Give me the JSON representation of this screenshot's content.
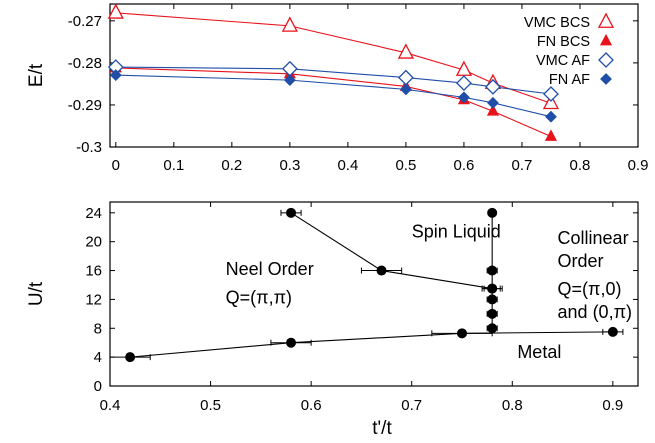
{
  "chart_data": [
    {
      "type": "line",
      "title": "",
      "xlabel": "",
      "ylabel": "E/t",
      "xlim": [
        -0.01,
        0.9
      ],
      "ylim": [
        -0.3,
        -0.266
      ],
      "xticks": [
        "0",
        "0.1",
        "0.2",
        "0.3",
        "0.4",
        "0.5",
        "0.6",
        "0.7",
        "0.8",
        "0.9"
      ],
      "yticks": [
        "-0.27",
        "-0.28",
        "-0.29",
        "-0.3"
      ],
      "legend": "top-right",
      "series": [
        {
          "name": "VMC BCS",
          "color": "#e8121b",
          "marker": "triangle-open",
          "x": [
            0,
            0.3,
            0.5,
            0.6,
            0.65,
            0.75
          ],
          "y": [
            -0.2681,
            -0.2712,
            -0.2776,
            -0.2817,
            -0.2848,
            -0.2896
          ]
        },
        {
          "name": "FN BCS",
          "color": "#e8121b",
          "marker": "triangle-filled",
          "x": [
            0,
            0.3,
            0.5,
            0.6,
            0.65,
            0.75
          ],
          "y": [
            -0.2812,
            -0.2826,
            -0.2856,
            -0.2888,
            -0.2915,
            -0.2975
          ]
        },
        {
          "name": "VMC AF",
          "color": "#1f4fa8",
          "marker": "diamond-open",
          "x": [
            0,
            0.3,
            0.5,
            0.6,
            0.65,
            0.75
          ],
          "y": [
            -0.281,
            -0.2814,
            -0.2835,
            -0.2848,
            -0.2857,
            -0.2874
          ]
        },
        {
          "name": "FN AF",
          "color": "#1f4fa8",
          "marker": "diamond-filled",
          "x": [
            0,
            0.3,
            0.5,
            0.6,
            0.65,
            0.75
          ],
          "y": [
            -0.2829,
            -0.2841,
            -0.2863,
            -0.2882,
            -0.2895,
            -0.2928
          ]
        }
      ]
    },
    {
      "type": "scatter",
      "title": "",
      "xlabel": "t'/t",
      "ylabel": "U/t",
      "xlim": [
        0.4,
        0.925
      ],
      "ylim": [
        0,
        25.5
      ],
      "xticks": [
        "0.4",
        "0.5",
        "0.6",
        "0.7",
        "0.8",
        "0.9"
      ],
      "yticks": [
        "0",
        "4",
        "8",
        "12",
        "16",
        "20",
        "24"
      ],
      "series": [
        {
          "color": "#000000",
          "marker": "circle-filled",
          "points": [
            [
              0.58,
              24
            ],
            [
              0.67,
              16
            ],
            [
              0.78,
              13.5
            ]
          ],
          "xerr": [
            0.01,
            0.02,
            0.01
          ]
        },
        {
          "color": "#000000",
          "marker": "circle-filled",
          "points": [
            [
              0.78,
              24
            ],
            [
              0.78,
              16
            ],
            [
              0.78,
              13.5
            ],
            [
              0.78,
              12
            ],
            [
              0.78,
              10
            ],
            [
              0.78,
              8
            ]
          ],
          "xerr": [
            0,
            0.005,
            0.008,
            0.005,
            0.005,
            0.005
          ]
        },
        {
          "color": "#000000",
          "marker": "circle-filled",
          "points": [
            [
              0.42,
              4
            ],
            [
              0.58,
              6
            ],
            [
              0.75,
              7.3
            ],
            [
              0.9,
              7.5
            ]
          ],
          "xerr": [
            0.02,
            0.02,
            0.03,
            0.01
          ]
        }
      ],
      "annotations": [
        {
          "text": "Spin Liquid",
          "x": 0.7,
          "y": 20.6
        },
        {
          "text": "Collinear",
          "x": 0.845,
          "y": 19.7
        },
        {
          "text": "Order",
          "x": 0.845,
          "y": 16.5
        },
        {
          "text": "Neel Order",
          "x": 0.515,
          "y": 15.4
        },
        {
          "text": "Q=(π,π)",
          "x": 0.515,
          "y": 11.4
        },
        {
          "text": "Q=(π,0)",
          "x": 0.845,
          "y": 12.6
        },
        {
          "text": "and (0,π)",
          "x": 0.845,
          "y": 9.4
        },
        {
          "text": "Metal",
          "x": 0.805,
          "y": 3.9
        }
      ]
    }
  ]
}
